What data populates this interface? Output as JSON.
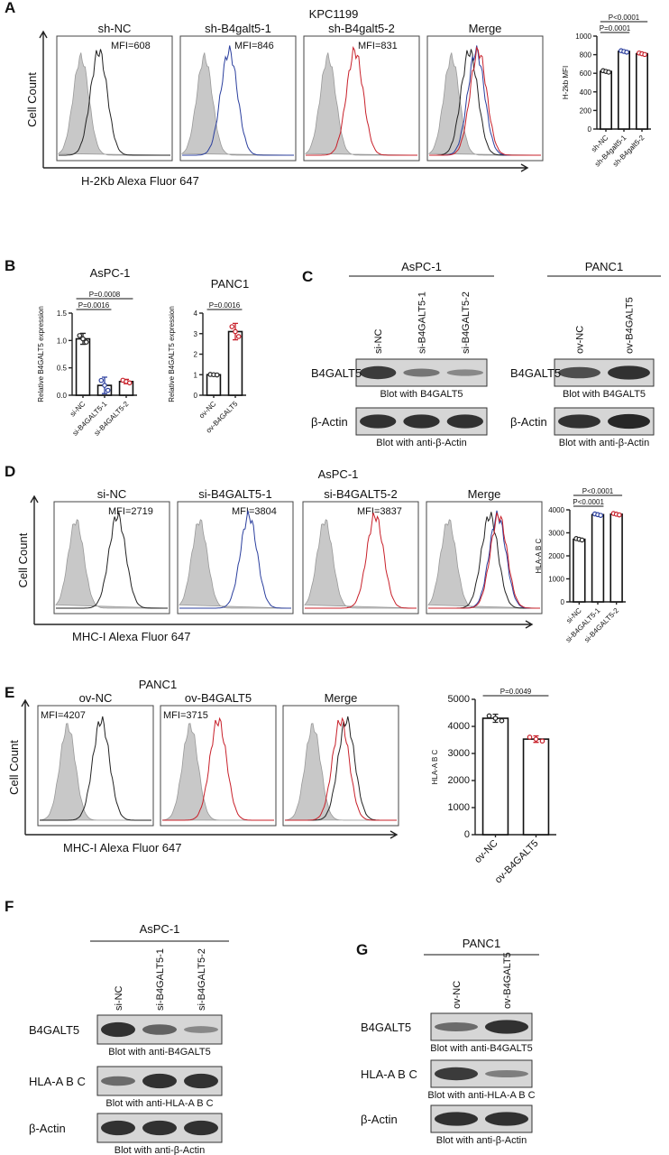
{
  "panels": {
    "A": "A",
    "B": "B",
    "C": "C",
    "D": "D",
    "E": "E",
    "F": "F",
    "G": "G"
  },
  "A": {
    "title": "KPC1199",
    "hist": [
      {
        "label": "sh-NC",
        "mfi": "MFI=608",
        "color": "#222222"
      },
      {
        "label": "sh-B4galt5-1",
        "mfi": "MFI=846",
        "color": "#2b3f9e"
      },
      {
        "label": "sh-B4galt5-2",
        "mfi": "MFI=831",
        "color": "#c8202a"
      },
      {
        "label": "Merge",
        "mfi": "",
        "color": ""
      }
    ],
    "ylabel": "Cell Count",
    "xlabel": "H-2Kb  Alexa Fluor 647"
  },
  "C": {
    "left": {
      "title": "AsPC-1",
      "lanes": [
        "si-NC",
        "si-B4GALT5-1",
        "si-B4GALT5-2"
      ],
      "rows": [
        {
          "label": "B4GALT5",
          "caption": "Blot with B4GALT5"
        },
        {
          "label": "β-Actin",
          "caption": "Blot with anti-β-Actin"
        }
      ]
    },
    "right": {
      "title": "PANC1",
      "lanes": [
        "ov-NC",
        "ov-B4GALT5"
      ],
      "rows": [
        {
          "label": "B4GALT5",
          "caption": "Blot with B4GALT5"
        },
        {
          "label": "β-Actin",
          "caption": "Blot with anti-β-Actin"
        }
      ]
    }
  },
  "D": {
    "title": "AsPC-1",
    "hist": [
      {
        "label": "si-NC",
        "mfi": "MFI=2719",
        "color": "#222222"
      },
      {
        "label": "si-B4GALT5-1",
        "mfi": "MFI=3804",
        "color": "#2b3f9e"
      },
      {
        "label": "si-B4GALT5-2",
        "mfi": "MFI=3837",
        "color": "#c8202a"
      },
      {
        "label": "Merge",
        "mfi": "",
        "color": ""
      }
    ],
    "ylabel": "Cell Count",
    "xlabel": "MHC-I  Alexa Fluor 647"
  },
  "E": {
    "title": "PANC1",
    "hist": [
      {
        "label": "ov-NC",
        "mfi": "MFI=4207",
        "color": "#222222"
      },
      {
        "label": "ov-B4GALT5",
        "mfi": "MFI=3715",
        "color": "#c8202a"
      },
      {
        "label": "Merge",
        "mfi": "",
        "color": ""
      }
    ],
    "ylabel": "Cell Count",
    "xlabel": "MHC-I  Alexa Fluor 647"
  },
  "F": {
    "title": "AsPC-1",
    "lanes": [
      "si-NC",
      "si-B4GALT5-1",
      "si-B4GALT5-2"
    ],
    "rows": [
      {
        "label": "B4GALT5",
        "caption": "Blot with anti-B4GALT5"
      },
      {
        "label": "HLA-A B C",
        "caption": "Blot with anti-HLA-A B C"
      },
      {
        "label": "β-Actin",
        "caption": "Blot with anti-β-Actin"
      }
    ]
  },
  "G": {
    "title": "PANC1",
    "lanes": [
      "ov-NC",
      "ov-B4GALT5"
    ],
    "rows": [
      {
        "label": "B4GALT5",
        "caption": "Blot with anti-B4GALT5"
      },
      {
        "label": "HLA-A B C",
        "caption": "Blot with anti-HLA-A B C"
      },
      {
        "label": "β-Actin",
        "caption": "Blot with anti-β-Actin"
      }
    ]
  },
  "chart_data": [
    {
      "id": "A",
      "type": "bar",
      "title": "",
      "categories": [
        "sh-NC",
        "sh-B4galt5-1",
        "sh-B4galt5-2"
      ],
      "values": [
        620,
        835,
        810
      ],
      "colors": [
        "#222222",
        "#2b3f9e",
        "#c8202a"
      ],
      "ylabel": "H-2kb MFI",
      "ylim": [
        0,
        1000
      ],
      "yticks": [
        0,
        200,
        400,
        600,
        800,
        1000
      ],
      "annotations": [
        {
          "text": "P=0.0001",
          "from": 0,
          "to": 1
        },
        {
          "text": "P<0.0001",
          "from": 0,
          "to": 2
        }
      ]
    },
    {
      "id": "B1",
      "type": "bar",
      "title": "AsPC-1",
      "categories": [
        "si-NC",
        "si-B4GALT5-1",
        "si-B4GALT5-2"
      ],
      "values": [
        1.03,
        0.18,
        0.25
      ],
      "errors": [
        0.1,
        0.15,
        0.04
      ],
      "colors": [
        "#222222",
        "#2b3f9e",
        "#c8202a"
      ],
      "ylabel": "Relative B4GALT5 expression",
      "ylim": [
        0,
        1.5
      ],
      "yticks": [
        0.0,
        0.5,
        1.0,
        1.5
      ],
      "annotations": [
        {
          "text": "P=0.0016",
          "from": 0,
          "to": 1
        },
        {
          "text": "P=0.0008",
          "from": 0,
          "to": 2
        }
      ]
    },
    {
      "id": "B2",
      "type": "bar",
      "title": "PANC1",
      "categories": [
        "ov-NC",
        "ov-B4GALT5"
      ],
      "values": [
        1.0,
        3.1
      ],
      "errors": [
        0.02,
        0.4
      ],
      "colors": [
        "#222222",
        "#c8202a"
      ],
      "ylabel": "Relative B4GALT5 expression",
      "ylim": [
        0,
        4
      ],
      "yticks": [
        0,
        1,
        2,
        3,
        4
      ],
      "annotations": [
        {
          "text": "P=0.0016",
          "from": 0,
          "to": 1
        }
      ]
    },
    {
      "id": "D",
      "type": "bar",
      "title": "",
      "categories": [
        "si-NC",
        "si-B4GALT5-1",
        "si-B4GALT5-2"
      ],
      "values": [
        2720,
        3790,
        3810
      ],
      "colors": [
        "#222222",
        "#2b3f9e",
        "#c8202a"
      ],
      "ylabel": "HLA-A B C",
      "ylim": [
        0,
        4000
      ],
      "yticks": [
        0,
        1000,
        2000,
        3000,
        4000
      ],
      "annotations": [
        {
          "text": "P<0.0001",
          "from": 0,
          "to": 1
        },
        {
          "text": "P<0.0001",
          "from": 0,
          "to": 2
        }
      ]
    },
    {
      "id": "E",
      "type": "bar",
      "title": "",
      "categories": [
        "ov-NC",
        "ov-B4GALT5"
      ],
      "values": [
        4300,
        3530
      ],
      "errors": [
        150,
        120
      ],
      "colors": [
        "#222222",
        "#c8202a"
      ],
      "ylabel": "HLA-A B C",
      "ylim": [
        0,
        5000
      ],
      "yticks": [
        0,
        1000,
        2000,
        3000,
        4000,
        5000
      ],
      "annotations": [
        {
          "text": "P=0.0049",
          "from": 0,
          "to": 1
        }
      ]
    }
  ]
}
